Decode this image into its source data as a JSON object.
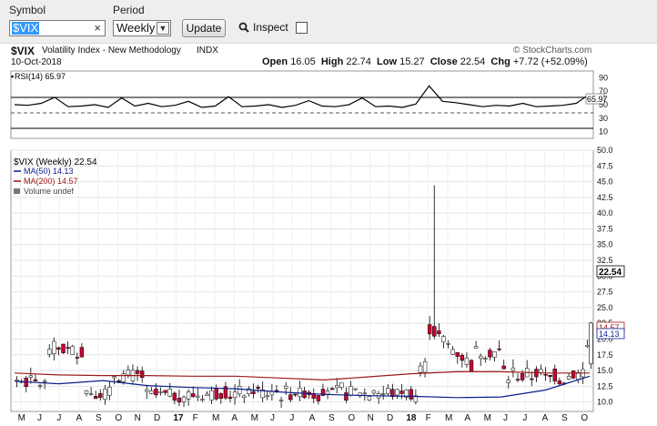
{
  "toolbar": {
    "symbol_label": "Symbol",
    "symbol_value": "$VIX",
    "period_label": "Period",
    "period_value": "Weekly",
    "update_label": "Update",
    "inspect_label": "Inspect"
  },
  "header": {
    "ticker": "$VIX",
    "name": "Volatility Index - New Methodology",
    "exchange": "INDX",
    "brand": "© StockCharts.com",
    "date": "10-Oct-2018",
    "open_label": "Open",
    "open": "16.05",
    "high_label": "High",
    "high": "22.74",
    "low_label": "Low",
    "low": "15.27",
    "close_label": "Close",
    "close": "22.54",
    "chg_label": "Chg",
    "chg": "+7.72 (+52.09%)"
  },
  "rsi_panel": {
    "label": "RSI(14) 65.97",
    "value_tag": "65.97",
    "ticks": [
      "90",
      "70",
      "50",
      "30",
      "10"
    ]
  },
  "legend": {
    "price": "$VIX (Weekly) 22.54",
    "ma50": "MA(50) 14.13",
    "ma200": "MA(200) 14.57",
    "volume": "Volume undef"
  },
  "price_ticks": [
    "50.0",
    "47.5",
    "45.0",
    "42.5",
    "40.0",
    "37.5",
    "35.0",
    "32.5",
    "30.0",
    "27.5",
    "25.0",
    "22.5",
    "20.0",
    "17.5",
    "15.0",
    "12.5",
    "10.0"
  ],
  "price_tags": {
    "close": "22.54",
    "ma200": "14.57",
    "ma50": "14.13"
  },
  "x_labels": [
    "M",
    "J",
    "J",
    "A",
    "S",
    "O",
    "N",
    "D",
    "17",
    "F",
    "M",
    "A",
    "M",
    "J",
    "J",
    "A",
    "S",
    "O",
    "N",
    "D",
    "18",
    "F",
    "M",
    "A",
    "M",
    "J",
    "J",
    "A",
    "S",
    "O"
  ],
  "colors": {
    "up": "#ffffff",
    "down": "#cc0033",
    "ma50": "#0a1e8c",
    "ma200": "#a01818",
    "rsi": "#000000"
  },
  "chart_data": {
    "type": "candlestick",
    "interval": "weekly",
    "ylim": [
      8.5,
      50
    ],
    "rsi_ylim": [
      0,
      100
    ],
    "ma50": [
      13.3,
      12.9,
      13.4,
      12.6,
      12.3,
      12.1,
      11.6,
      11.2,
      11.0,
      10.9,
      10.7,
      10.8,
      11.9,
      14.1
    ],
    "ma200": [
      14.6,
      14.3,
      14.2,
      14.2,
      14.1,
      14.1,
      13.8,
      13.5,
      14.0,
      14.5,
      14.8,
      14.8,
      14.6,
      14.6
    ],
    "rsi": [
      50,
      49,
      52,
      61,
      47,
      48,
      50,
      46,
      60,
      48,
      52,
      47,
      49,
      55,
      46,
      48,
      62,
      47,
      48,
      50,
      46,
      49,
      56,
      48,
      47,
      50,
      60,
      47,
      48,
      46,
      51,
      78,
      55,
      53,
      50,
      47,
      49,
      48,
      52,
      47,
      48,
      49,
      52,
      66
    ]
  }
}
